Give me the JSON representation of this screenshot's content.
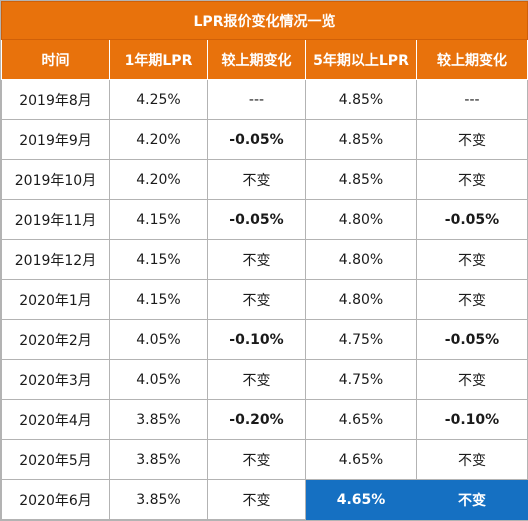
{
  "title": "LPR报价变化情况一览",
  "columns": [
    "时间",
    "1年期LPR",
    "较上期变化",
    "5年期以上LPR",
    "较上期变化"
  ],
  "rows": [
    [
      "2019年8月",
      "4.25%",
      "---",
      "4.85%",
      "---"
    ],
    [
      "2019年9月",
      "4.20%",
      "-0.05%",
      "4.85%",
      "不变"
    ],
    [
      "2019年10月",
      "4.20%",
      "不变",
      "4.85%",
      "不变"
    ],
    [
      "2019年11月",
      "4.15%",
      "-0.05%",
      "4.80%",
      "-0.05%"
    ],
    [
      "2019年12月",
      "4.15%",
      "不变",
      "4.80%",
      "不变"
    ],
    [
      "2020年1月",
      "4.15%",
      "不变",
      "4.80%",
      "不变"
    ],
    [
      "2020年2月",
      "4.05%",
      "-0.10%",
      "4.75%",
      "-0.05%"
    ],
    [
      "2020年3月",
      "4.05%",
      "不变",
      "4.75%",
      "不变"
    ],
    [
      "2020年4月",
      "3.85%",
      "-0.20%",
      "4.65%",
      "-0.10%"
    ],
    [
      "2020年5月",
      "3.85%",
      "不变",
      "4.65%",
      "不变"
    ],
    [
      "2020年6月",
      "3.85%",
      "不变",
      "4.65%",
      "不变"
    ]
  ],
  "colors": {
    "header_bg": "#e8720c",
    "negative_text": "#19b24b",
    "highlight_bg": "#1570c2"
  },
  "highlight": {
    "row": 10,
    "columns": [
      3,
      4
    ]
  }
}
